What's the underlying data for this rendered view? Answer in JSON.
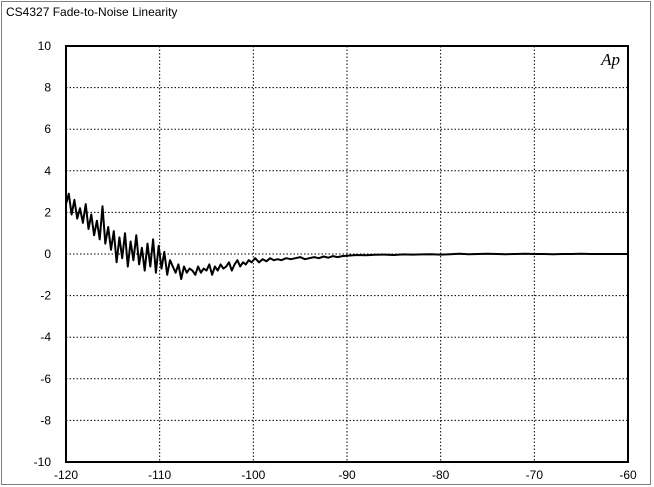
{
  "chart_data": {
    "type": "line",
    "title": "CS4327 Fade-to-Noise Linearity",
    "xlabel": "",
    "ylabel": "",
    "xlim": [
      -120,
      -60
    ],
    "ylim": [
      -10,
      10
    ],
    "x_ticks": [
      -120,
      -110,
      -100,
      -90,
      -80,
      -70,
      -60
    ],
    "y_ticks": [
      10,
      8,
      6,
      4,
      2,
      0,
      -2,
      -4,
      -6,
      -8,
      -10
    ],
    "grid": true,
    "logo_text": "Ap",
    "series": [
      {
        "color": "#000000",
        "x": [
          -120,
          -119.7,
          -119.4,
          -119.1,
          -118.8,
          -118.5,
          -118.2,
          -117.9,
          -117.6,
          -117.3,
          -117.0,
          -116.7,
          -116.4,
          -116.1,
          -115.8,
          -115.5,
          -115.2,
          -114.9,
          -114.6,
          -114.3,
          -114.0,
          -113.7,
          -113.4,
          -113.1,
          -112.8,
          -112.5,
          -112.2,
          -111.9,
          -111.6,
          -111.3,
          -111.0,
          -110.7,
          -110.4,
          -110.1,
          -109.8,
          -109.5,
          -109.2,
          -108.9,
          -108.6,
          -108.3,
          -108.0,
          -107.7,
          -107.4,
          -107.1,
          -106.8,
          -106.5,
          -106.2,
          -105.9,
          -105.6,
          -105.3,
          -105.0,
          -104.7,
          -104.4,
          -104.1,
          -103.8,
          -103.5,
          -103.2,
          -102.9,
          -102.6,
          -102.3,
          -102.0,
          -101.7,
          -101.4,
          -101.1,
          -100.8,
          -100.5,
          -100.2,
          -99.8,
          -99.4,
          -99.0,
          -98.6,
          -98.2,
          -97.8,
          -97.4,
          -97.0,
          -96.5,
          -96.0,
          -95.5,
          -95.0,
          -94.5,
          -94.0,
          -93.5,
          -93.0,
          -92.5,
          -92.0,
          -91.5,
          -91.0,
          -90.5,
          -90.0,
          -89.0,
          -88.0,
          -87.0,
          -86.0,
          -85.0,
          -84.0,
          -83.0,
          -82.0,
          -81.0,
          -80.0,
          -79.0,
          -78.0,
          -77.0,
          -76.0,
          -75.0,
          -74.0,
          -73.0,
          -72.0,
          -71.0,
          -70.0,
          -69.0,
          -68.0,
          -67.0,
          -66.0,
          -65.0,
          -64.0,
          -63.0,
          -62.0,
          -61.0,
          -60.0
        ],
        "y": [
          2.4,
          2.9,
          1.9,
          2.6,
          1.7,
          2.2,
          1.5,
          2.4,
          1.2,
          1.9,
          0.9,
          1.6,
          0.7,
          2.3,
          0.5,
          1.3,
          0.2,
          1.1,
          -0.4,
          0.8,
          -0.2,
          1.0,
          -0.6,
          0.6,
          -0.3,
          0.9,
          -0.5,
          0.3,
          -0.8,
          0.5,
          -0.6,
          0.7,
          -0.9,
          0.4,
          -0.7,
          0.1,
          -1.0,
          -0.3,
          -0.6,
          -0.9,
          -0.5,
          -1.2,
          -0.6,
          -0.9,
          -0.7,
          -0.8,
          -1.0,
          -0.6,
          -0.9,
          -0.7,
          -0.8,
          -0.5,
          -1.0,
          -0.6,
          -0.8,
          -0.5,
          -0.7,
          -0.6,
          -0.4,
          -0.8,
          -0.5,
          -0.3,
          -0.6,
          -0.4,
          -0.5,
          -0.3,
          -0.4,
          -0.2,
          -0.4,
          -0.25,
          -0.35,
          -0.2,
          -0.3,
          -0.25,
          -0.3,
          -0.2,
          -0.25,
          -0.2,
          -0.15,
          -0.25,
          -0.2,
          -0.15,
          -0.2,
          -0.12,
          -0.18,
          -0.1,
          -0.15,
          -0.1,
          -0.08,
          -0.05,
          -0.06,
          -0.04,
          -0.03,
          -0.05,
          -0.02,
          -0.03,
          -0.02,
          -0.01,
          -0.03,
          -0.01,
          0.01,
          -0.01,
          0.0,
          0.01,
          0.0,
          -0.01,
          0.0,
          0.01,
          0.0,
          0.0,
          -0.01,
          0.0,
          0.0,
          0.01,
          0.0,
          0.0,
          0.0,
          0.0,
          0.0
        ]
      }
    ]
  }
}
